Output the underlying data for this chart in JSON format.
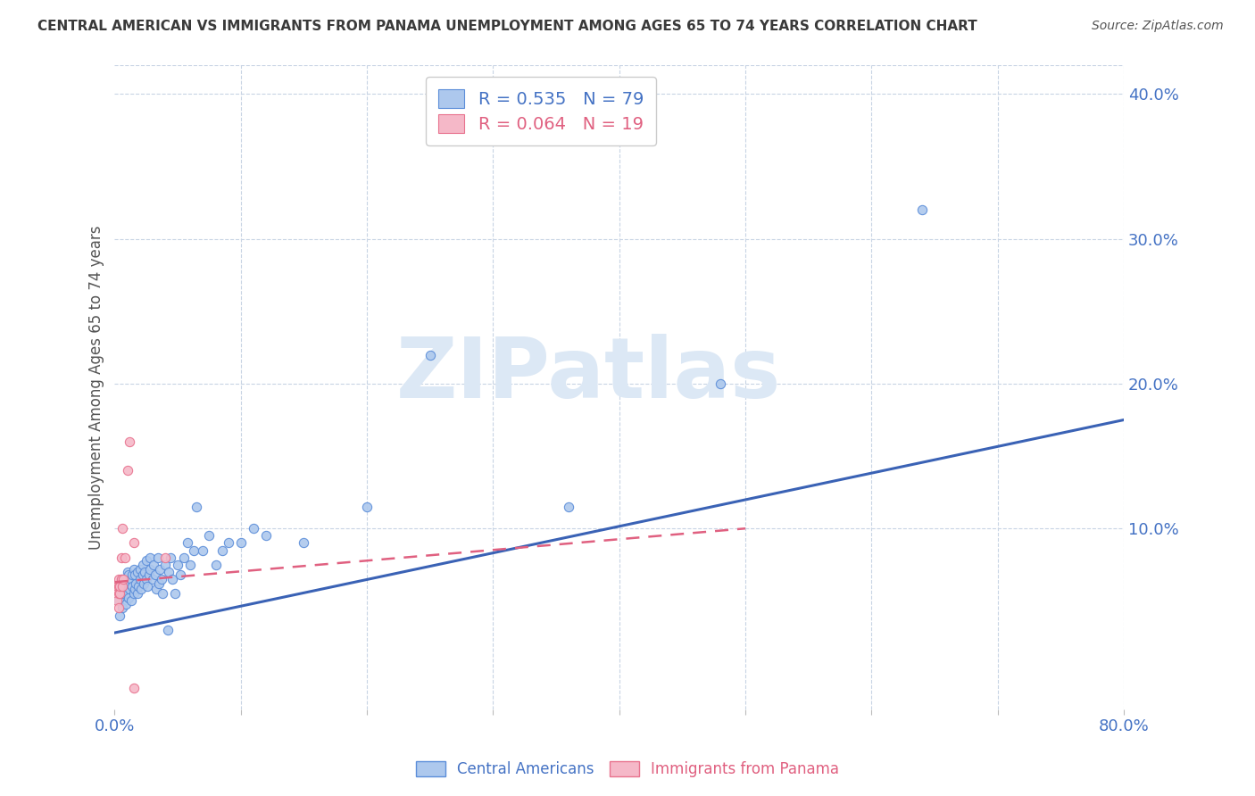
{
  "title": "CENTRAL AMERICAN VS IMMIGRANTS FROM PANAMA UNEMPLOYMENT AMONG AGES 65 TO 74 YEARS CORRELATION CHART",
  "source": "Source: ZipAtlas.com",
  "ylabel": "Unemployment Among Ages 65 to 74 years",
  "xlim": [
    0.0,
    0.8
  ],
  "ylim": [
    -0.025,
    0.42
  ],
  "yticks_right": [
    0.1,
    0.2,
    0.3,
    0.4
  ],
  "ytick_right_labels": [
    "10.0%",
    "20.0%",
    "30.0%",
    "40.0%"
  ],
  "legend_blue_r": "R = 0.535",
  "legend_blue_n": "N = 79",
  "legend_pink_r": "R = 0.064",
  "legend_pink_n": "N = 19",
  "blue_color": "#adc8ed",
  "blue_edge_color": "#5b8dd9",
  "pink_color": "#f5b8c8",
  "pink_edge_color": "#e8728e",
  "blue_line_color": "#3a62b5",
  "pink_line_color": "#e06080",
  "watermark": "ZIPatlas",
  "watermark_color": "#dce8f5",
  "background_color": "#ffffff",
  "grid_color": "#c8d4e4",
  "title_color": "#3a3a3a",
  "axis_label_color": "#555555",
  "tick_label_color": "#4472c4",
  "legend_text_color_blue": "#4472c4",
  "legend_text_color_pink": "#e06080",
  "blue_scatter_x": [
    0.003,
    0.004,
    0.005,
    0.005,
    0.005,
    0.006,
    0.007,
    0.007,
    0.008,
    0.009,
    0.01,
    0.01,
    0.01,
    0.01,
    0.011,
    0.011,
    0.012,
    0.012,
    0.013,
    0.013,
    0.014,
    0.014,
    0.015,
    0.015,
    0.016,
    0.016,
    0.017,
    0.018,
    0.018,
    0.019,
    0.02,
    0.02,
    0.021,
    0.022,
    0.022,
    0.023,
    0.024,
    0.025,
    0.025,
    0.026,
    0.027,
    0.028,
    0.028,
    0.03,
    0.031,
    0.032,
    0.033,
    0.034,
    0.035,
    0.036,
    0.037,
    0.038,
    0.04,
    0.042,
    0.043,
    0.044,
    0.046,
    0.048,
    0.05,
    0.052,
    0.055,
    0.058,
    0.06,
    0.063,
    0.065,
    0.07,
    0.075,
    0.08,
    0.085,
    0.09,
    0.1,
    0.11,
    0.12,
    0.15,
    0.2,
    0.25,
    0.36,
    0.48,
    0.64
  ],
  "blue_scatter_y": [
    0.05,
    0.04,
    0.06,
    0.055,
    0.065,
    0.045,
    0.058,
    0.062,
    0.055,
    0.048,
    0.055,
    0.06,
    0.065,
    0.07,
    0.052,
    0.068,
    0.058,
    0.062,
    0.05,
    0.065,
    0.06,
    0.068,
    0.055,
    0.072,
    0.058,
    0.068,
    0.062,
    0.055,
    0.07,
    0.06,
    0.065,
    0.072,
    0.058,
    0.068,
    0.075,
    0.062,
    0.07,
    0.065,
    0.078,
    0.06,
    0.068,
    0.072,
    0.08,
    0.065,
    0.075,
    0.068,
    0.058,
    0.08,
    0.062,
    0.072,
    0.065,
    0.055,
    0.075,
    0.03,
    0.07,
    0.08,
    0.065,
    0.055,
    0.075,
    0.068,
    0.08,
    0.09,
    0.075,
    0.085,
    0.115,
    0.085,
    0.095,
    0.075,
    0.085,
    0.09,
    0.09,
    0.1,
    0.095,
    0.09,
    0.115,
    0.22,
    0.115,
    0.2,
    0.32
  ],
  "pink_scatter_x": [
    0.002,
    0.002,
    0.003,
    0.003,
    0.003,
    0.003,
    0.004,
    0.004,
    0.005,
    0.005,
    0.006,
    0.006,
    0.007,
    0.008,
    0.01,
    0.012,
    0.015,
    0.04,
    0.015
  ],
  "pink_scatter_y": [
    0.05,
    0.06,
    0.045,
    0.055,
    0.06,
    0.065,
    0.055,
    0.06,
    0.08,
    0.065,
    0.1,
    0.06,
    0.065,
    0.08,
    0.14,
    0.16,
    0.09,
    0.08,
    -0.01
  ],
  "blue_trendline_x": [
    0.0,
    0.8
  ],
  "blue_trendline_y": [
    0.028,
    0.175
  ],
  "pink_trendline_x": [
    0.0,
    0.5
  ],
  "pink_trendline_y": [
    0.063,
    0.1
  ]
}
